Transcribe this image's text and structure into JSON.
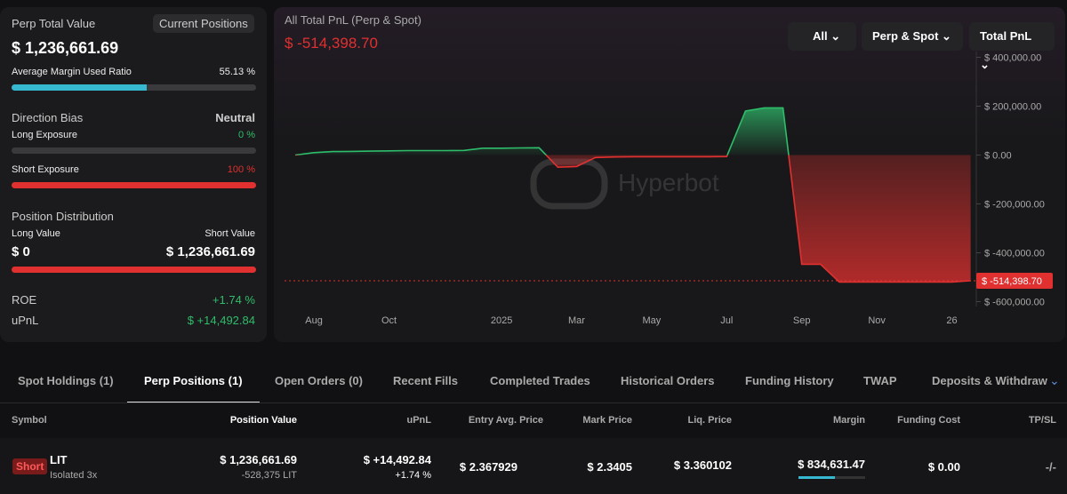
{
  "summary": {
    "title": "Perp Total Value",
    "badge": "Current Positions",
    "total_value": "$ 1,236,661.69",
    "margin_label": "Average Margin Used Ratio",
    "margin_ratio": {
      "value": 55.13,
      "label": "55.13 %"
    },
    "bias_label": "Direction Bias",
    "bias": "Neutral",
    "long_label": "Long Exposure",
    "long_exposure": {
      "value": 0,
      "label": "0 %"
    },
    "short_label": "Short Exposure",
    "short_exposure": {
      "value": 100,
      "label": "100 %"
    },
    "distribution_label": "Position Distribution",
    "long_value_label": "Long Value",
    "short_value_label": "Short Value",
    "long_value": "$ 0",
    "short_value": "$ 1,236,661.69",
    "roe_label": "ROE",
    "roe": "+1.74 %",
    "upnl_label": "uPnL",
    "upnl": "$ +14,492.84"
  },
  "chart_data": {
    "type": "line",
    "title": "All Total PnL (Perp & Spot)",
    "total": "$ -514,398.70",
    "watermark": "Hyperbot",
    "controls": [
      "All",
      "Perp & Spot",
      "Total PnL"
    ],
    "categories": [
      null,
      "Aug",
      null,
      null,
      null,
      "Oct",
      null,
      null,
      null,
      null,
      null,
      "2025",
      null,
      null,
      null,
      "Mar",
      null,
      null,
      null,
      "May",
      null,
      null,
      null,
      "Jul",
      null,
      null,
      null,
      "Sep",
      null,
      null,
      null,
      "Nov",
      null,
      null,
      null,
      "26",
      null
    ],
    "values": [
      0,
      10000,
      14000,
      15000,
      16000,
      17000,
      18000,
      18000,
      18000,
      19000,
      28000,
      28000,
      29000,
      30000,
      -50000,
      -47000,
      -10000,
      -8000,
      -7000,
      -7000,
      -7000,
      -7000,
      -7000,
      -6000,
      180000,
      193000,
      193000,
      -447000,
      -447000,
      -520000,
      -520000,
      -520000,
      -520000,
      -520000,
      -520000,
      -520000,
      -514398.7
    ],
    "color": "#2ebd6b",
    "negative_color": "#e0302f",
    "grid": false,
    "ylim": [
      -620000,
      420000
    ],
    "yticks": [
      {
        "value": -600000,
        "label": "$ -600,000.00"
      },
      {
        "value": -400000,
        "label": "$ -400,000.00"
      },
      {
        "value": -200000,
        "label": "$ -200,000.00"
      },
      {
        "value": 0,
        "label": "$ 0.00"
      },
      {
        "value": 200000,
        "label": "$ 200,000.00"
      },
      {
        "value": 400000,
        "label": "$ 400,000.00"
      }
    ]
  },
  "tabs": {
    "items": [
      "Spot Holdings (1)",
      "Perp Positions (1)",
      "Open Orders (0)",
      "Recent Fills",
      "Completed Trades",
      "Historical Orders",
      "Funding History",
      "TWAP",
      "Deposits & Withdraw"
    ],
    "active": 1
  },
  "table": {
    "headers": [
      "Symbol",
      "Position Value",
      "uPnL",
      "Entry Avg. Price",
      "Mark Price",
      "Liq. Price",
      "Margin",
      "Funding Cost",
      "TP/SL"
    ],
    "row": {
      "side": "Short",
      "symbol": "LIT",
      "leverage": "Isolated 3x",
      "position_value": "$ 1,236,661.69",
      "size": "-528,375 LIT",
      "upnl": "$ +14,492.84",
      "roe": "+1.74 %",
      "entry": "$ 2.367929",
      "mark": "$ 2.3405",
      "liq": "$ 3.360102",
      "margin": "$ 834,631.47",
      "funding": "$ 0.00",
      "tpsl": "-/-"
    }
  }
}
